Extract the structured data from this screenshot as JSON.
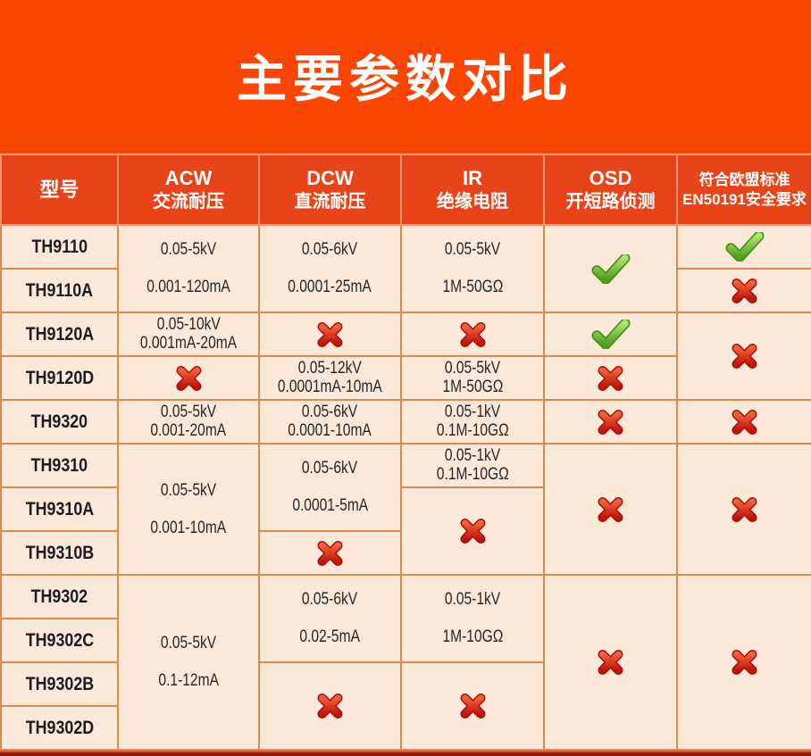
{
  "page": {
    "title": "主要参数对比",
    "colors": {
      "background": "#fb4505",
      "header_bg": "#e94419",
      "cell_bg": "#fce8d8",
      "border": "#e0884e",
      "check_green": "#5aae27",
      "cross_red": "#d8281a",
      "bottom_strip": "#8a170d",
      "title_text": "#ffffff",
      "cell_text": "#272727"
    }
  },
  "icons": {
    "check": "glossy green check mark",
    "cross": "glossy red x mark"
  },
  "table": {
    "columns": [
      {
        "line1": "型号",
        "line2": ""
      },
      {
        "line1": "ACW",
        "line2": "交流耐压"
      },
      {
        "line1": "DCW",
        "line2": "直流耐压"
      },
      {
        "line1": "IR",
        "line2": "绝缘电阻"
      },
      {
        "line1": "OSD",
        "line2": "开短路侦测"
      },
      {
        "line1": "符合欧盟标准",
        "line2": "EN50191安全要求"
      }
    ],
    "models": [
      "TH9110",
      "TH9110A",
      "TH9120A",
      "TH9120D",
      "TH9320",
      "TH9310",
      "TH9310A",
      "TH9310B",
      "TH9302",
      "TH9302C",
      "TH9302B",
      "TH9302D"
    ],
    "cells": {
      "acw_th9110": {
        "l1": "0.05-5kV",
        "l2": "0.001-120mA"
      },
      "acw_th9120a": {
        "l1": "0.05-10kV",
        "l2": "0.001mA-20mA"
      },
      "acw_th9120d": {
        "icon": "cross"
      },
      "acw_th9320": {
        "l1": "0.05-5kV",
        "l2": "0.001-20mA"
      },
      "acw_th9310": {
        "l1": "0.05-5kV",
        "l2": "0.001-10mA"
      },
      "acw_th9302": {
        "l1": "0.05-5kV",
        "l2": "0.1-12mA"
      },
      "dcw_th9110": {
        "l1": "0.05-6kV",
        "l2": "0.0001-25mA"
      },
      "dcw_th9120a": {
        "icon": "cross"
      },
      "dcw_th9120d": {
        "l1": "0.05-12kV",
        "l2": "0.0001mA-10mA"
      },
      "dcw_th9320": {
        "l1": "0.05-6kV",
        "l2": "0.0001-10mA"
      },
      "dcw_th9310": {
        "l1": "0.05-6kV",
        "l2": "0.0001-5mA"
      },
      "dcw_th9310b": {
        "icon": "cross"
      },
      "dcw_th9302": {
        "l1": "0.05-6kV",
        "l2": "0.02-5mA"
      },
      "dcw_th9302b": {
        "icon": "cross"
      },
      "ir_th9110": {
        "l1": "0.05-5kV",
        "l2": "1M-50GΩ"
      },
      "ir_th9120a": {
        "icon": "cross"
      },
      "ir_th9120d": {
        "l1": "0.05-5kV",
        "l2": "1M-50GΩ"
      },
      "ir_th9320": {
        "l1": "0.05-1kV",
        "l2": "0.1M-10GΩ"
      },
      "ir_th9310": {
        "l1": "0.05-1kV",
        "l2": "0.1M-10GΩ"
      },
      "ir_th9310a": {
        "icon": "cross"
      },
      "ir_th9302": {
        "l1": "0.05-1kV",
        "l2": "1M-10GΩ"
      },
      "ir_th9302b": {
        "icon": "cross"
      },
      "osd_th9110": {
        "icon": "check"
      },
      "osd_th9120a": {
        "icon": "check"
      },
      "osd_th9120d": {
        "icon": "cross"
      },
      "osd_th9320": {
        "icon": "cross"
      },
      "osd_th9310": {
        "icon": "cross"
      },
      "osd_th9302": {
        "icon": "cross"
      },
      "en_th9110": {
        "icon": "check"
      },
      "en_th9110a": {
        "icon": "cross"
      },
      "en_th9120": {
        "icon": "cross"
      },
      "en_th9320": {
        "icon": "cross"
      },
      "en_th9310": {
        "icon": "cross"
      },
      "en_th9302": {
        "icon": "cross"
      }
    }
  }
}
